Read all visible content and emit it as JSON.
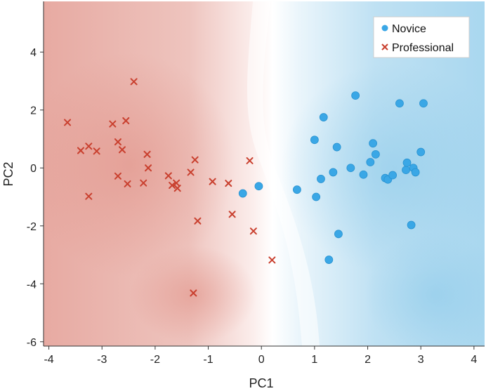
{
  "chart_data": {
    "type": "scatter",
    "xlabel": "PC1",
    "ylabel": "PC2",
    "xlim": [
      -4.1,
      4.2
    ],
    "ylim": [
      -6.15,
      5.75
    ],
    "xticks": [
      -4,
      -3,
      -2,
      -1,
      0,
      1,
      2,
      3,
      4
    ],
    "yticks": [
      -6,
      -4,
      -2,
      0,
      2,
      4
    ],
    "legend_position": "top-right",
    "grid": false,
    "background": "decision-region shading (red left, blue right)",
    "colors": {
      "novice": "#3aa7e6",
      "novice_region": "#8ccbea",
      "professional": "#c9402f",
      "professional_region": "#e39a8f"
    },
    "series": [
      {
        "name": "Novice",
        "marker": "circle",
        "points": [
          [
            -0.35,
            -0.88
          ],
          [
            -0.05,
            -0.63
          ],
          [
            0.67,
            -0.75
          ],
          [
            1.0,
            0.97
          ],
          [
            1.03,
            -1.0
          ],
          [
            1.12,
            -0.38
          ],
          [
            1.17,
            1.75
          ],
          [
            1.27,
            -3.17
          ],
          [
            1.35,
            -0.15
          ],
          [
            1.42,
            0.72
          ],
          [
            1.45,
            -2.28
          ],
          [
            1.68,
            0.0
          ],
          [
            1.77,
            2.5
          ],
          [
            1.92,
            -0.23
          ],
          [
            2.05,
            0.2
          ],
          [
            2.1,
            0.85
          ],
          [
            2.15,
            0.47
          ],
          [
            2.33,
            -0.35
          ],
          [
            2.38,
            -0.4
          ],
          [
            2.47,
            -0.25
          ],
          [
            2.6,
            2.23
          ],
          [
            2.72,
            -0.07
          ],
          [
            2.74,
            0.18
          ],
          [
            2.82,
            -1.97
          ],
          [
            2.86,
            0.0
          ],
          [
            2.9,
            -0.15
          ],
          [
            3.0,
            0.55
          ],
          [
            3.05,
            2.23
          ]
        ]
      },
      {
        "name": "Professional",
        "marker": "x",
        "points": [
          [
            -3.65,
            1.57
          ],
          [
            -3.4,
            0.6
          ],
          [
            -3.25,
            0.75
          ],
          [
            -3.25,
            -0.98
          ],
          [
            -3.1,
            0.58
          ],
          [
            -2.8,
            1.52
          ],
          [
            -2.7,
            0.9
          ],
          [
            -2.7,
            -0.28
          ],
          [
            -2.62,
            0.63
          ],
          [
            -2.55,
            1.63
          ],
          [
            -2.52,
            -0.55
          ],
          [
            -2.4,
            2.98
          ],
          [
            -2.22,
            -0.52
          ],
          [
            -2.15,
            0.47
          ],
          [
            -2.13,
            0.0
          ],
          [
            -1.75,
            -0.27
          ],
          [
            -1.68,
            -0.6
          ],
          [
            -1.6,
            -0.52
          ],
          [
            -1.58,
            -0.7
          ],
          [
            -1.33,
            -0.15
          ],
          [
            -1.25,
            0.28
          ],
          [
            -1.2,
            -1.83
          ],
          [
            -0.92,
            -0.47
          ],
          [
            -0.62,
            -0.53
          ],
          [
            -0.55,
            -1.6
          ],
          [
            -0.22,
            0.25
          ],
          [
            -0.15,
            -2.18
          ],
          [
            0.2,
            -3.18
          ],
          [
            -1.28,
            -4.32
          ]
        ]
      }
    ]
  }
}
